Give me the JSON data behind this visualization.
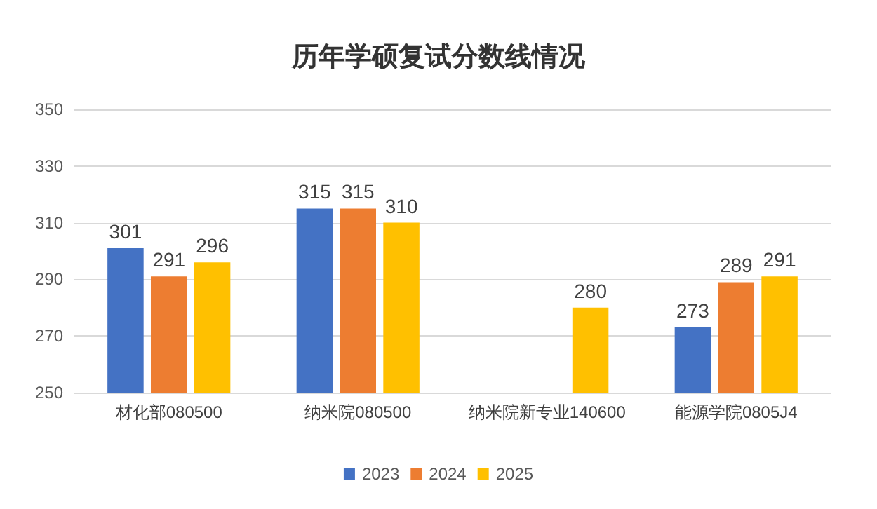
{
  "chart_data": {
    "type": "bar",
    "title": "历年学硕复试分数线情况",
    "categories": [
      "材化部080500",
      "纳米院080500",
      "纳米院新专业140600",
      "能源学院0805J4"
    ],
    "series": [
      {
        "name": "2023",
        "color": "#4472c4",
        "values": [
          301,
          315,
          null,
          273
        ]
      },
      {
        "name": "2024",
        "color": "#ed7d31",
        "values": [
          291,
          315,
          null,
          289
        ]
      },
      {
        "name": "2025",
        "color": "#ffc000",
        "values": [
          296,
          310,
          280,
          291
        ]
      }
    ],
    "ylim": [
      250,
      350
    ],
    "yticks": [
      250,
      270,
      290,
      310,
      330,
      350
    ],
    "grid": "y",
    "legend": "bottom",
    "data_labels": true
  }
}
